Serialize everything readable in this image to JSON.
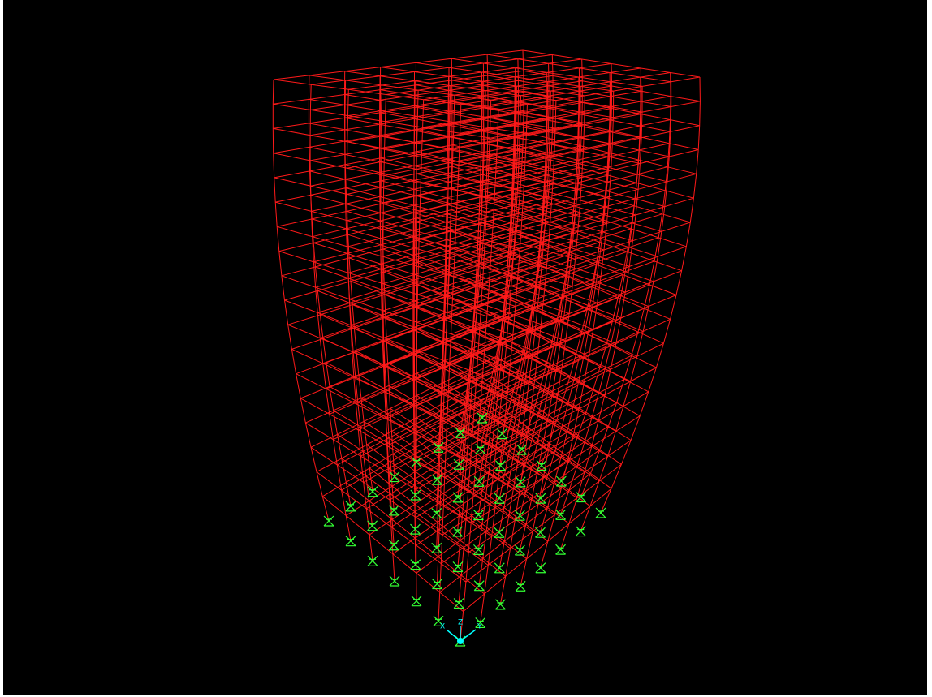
{
  "axes": {
    "labels": [
      "Z",
      "X",
      "Y"
    ]
  }
}
